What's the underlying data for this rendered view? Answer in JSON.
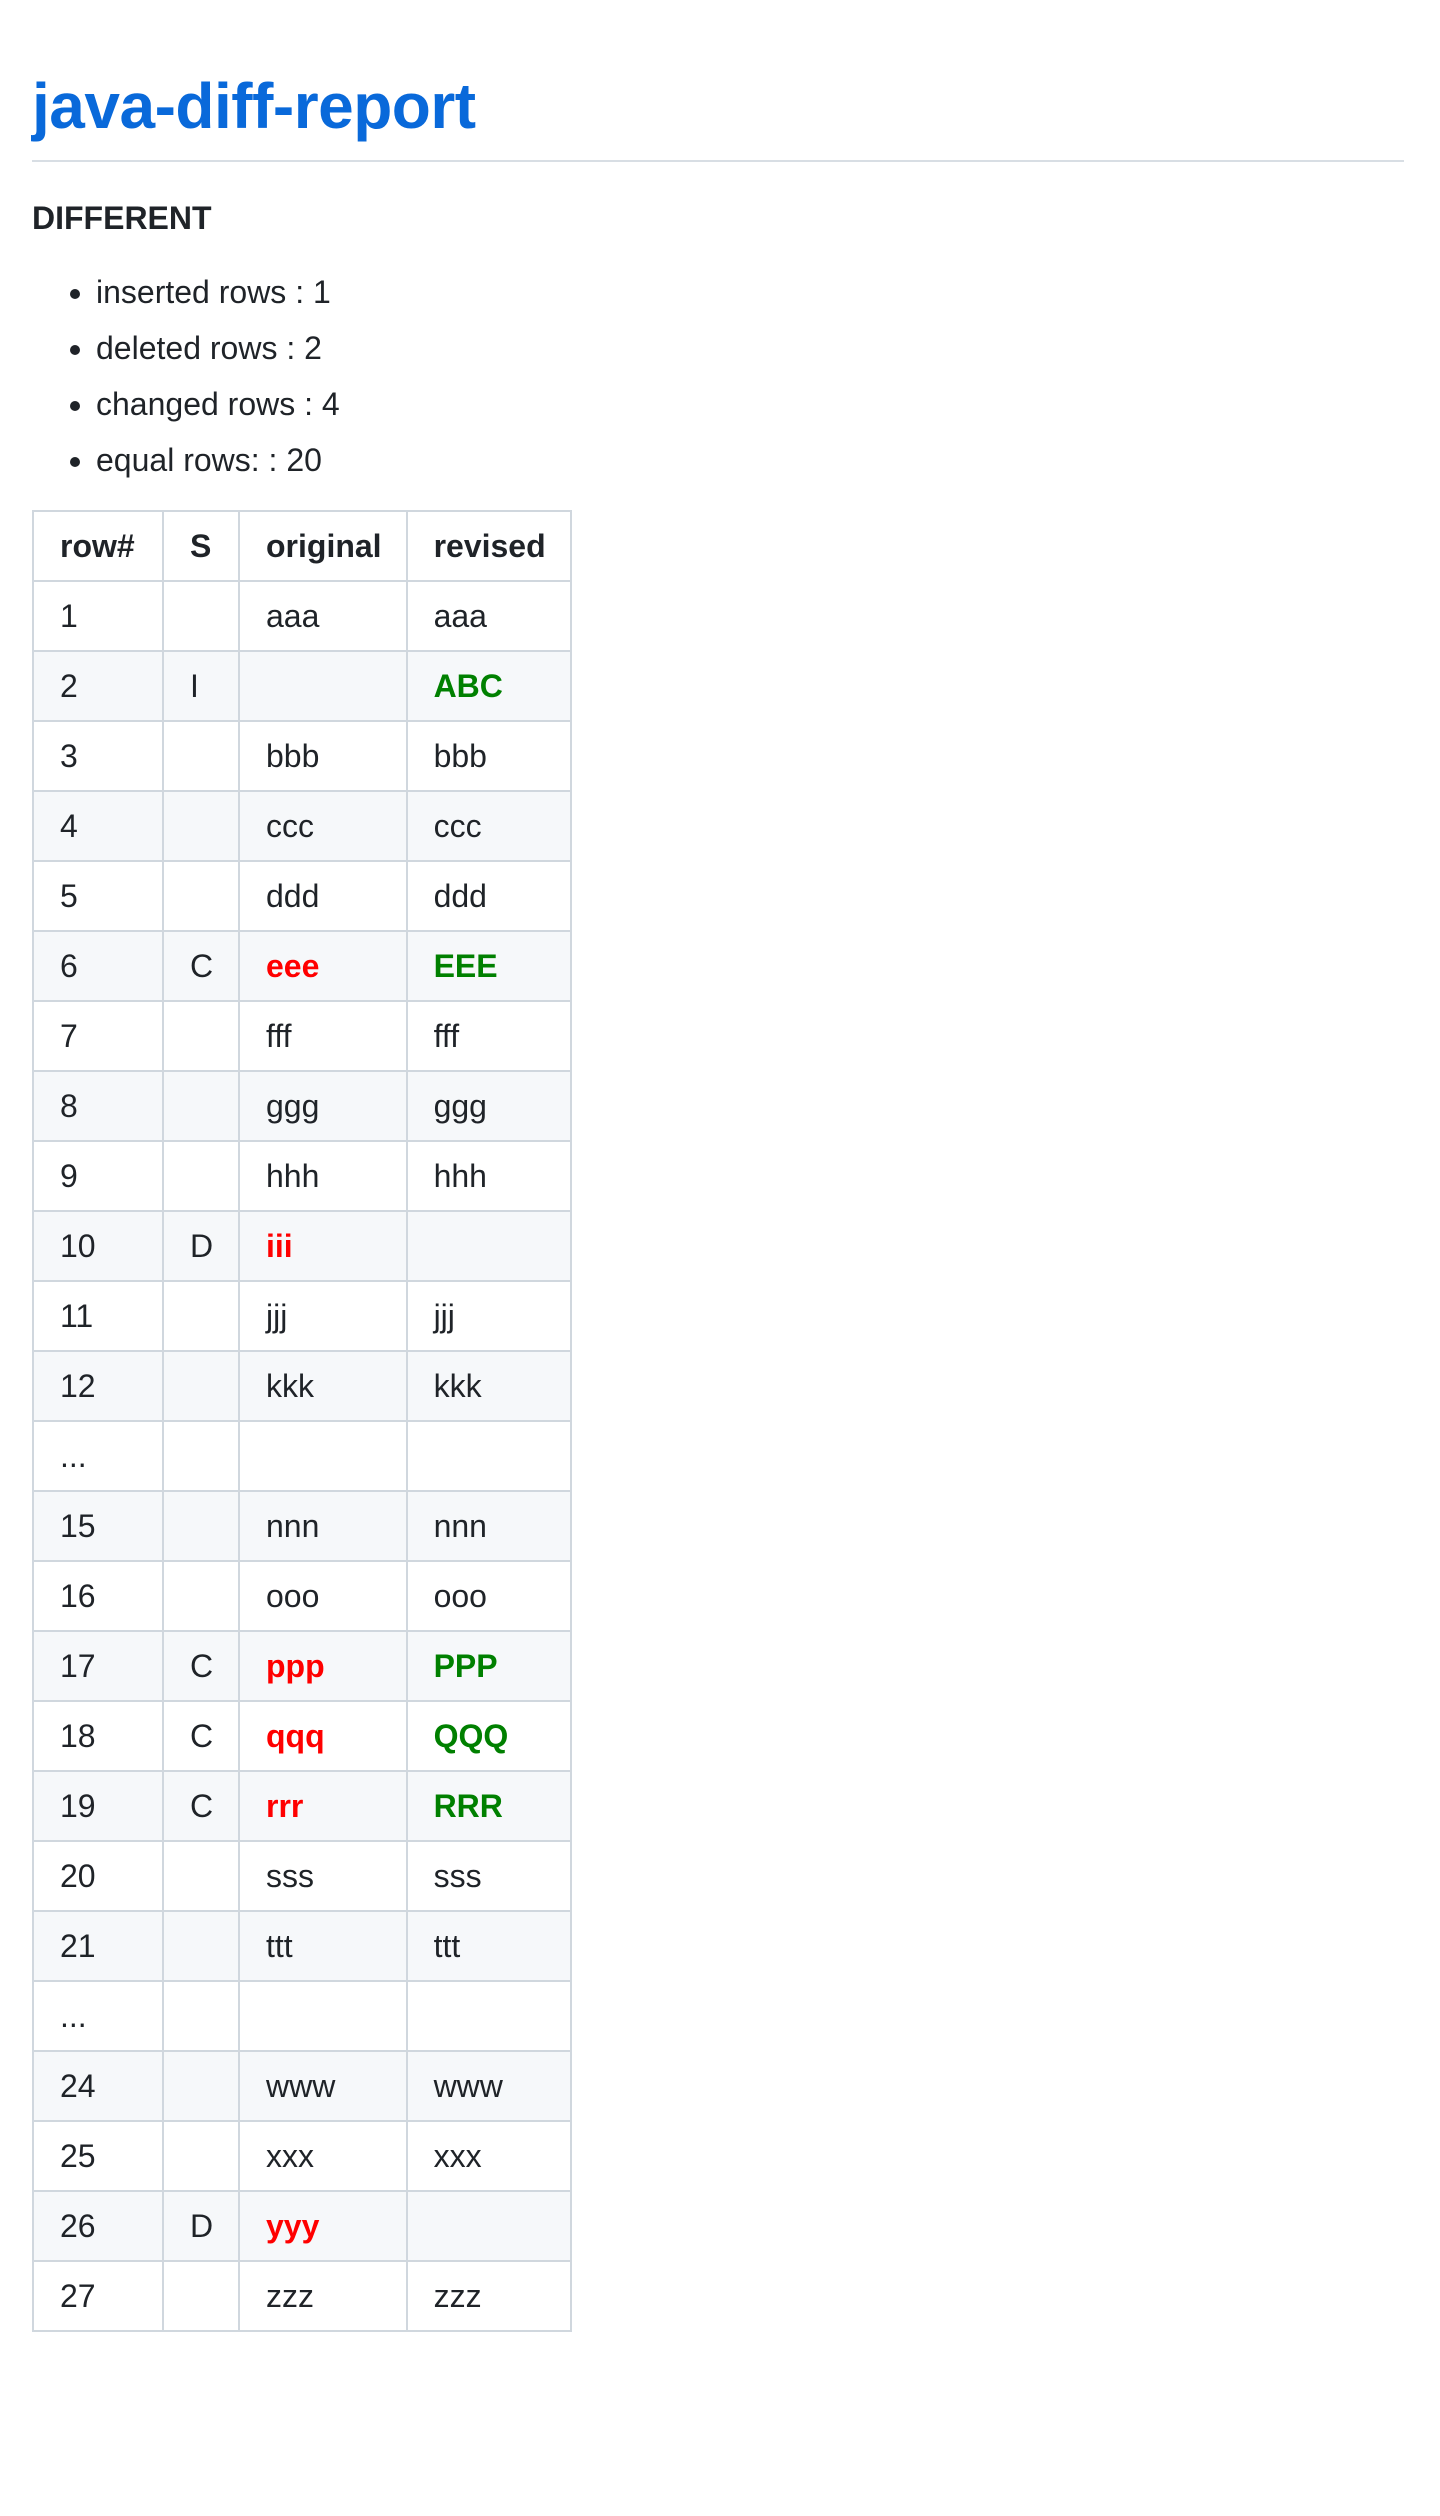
{
  "title": "java-diff-report",
  "status": "DIFFERENT",
  "stats": [
    "inserted rows : 1",
    "deleted rows : 2",
    "changed rows : 4",
    "equal rows: : 20"
  ],
  "colors": {
    "title": "#0969da",
    "removed_text": "#ff0000",
    "added_text": "#008000",
    "zebra_row": "#f6f8fa",
    "border": "#d0d7de"
  },
  "table": {
    "headers": [
      "row#",
      "S",
      "original",
      "revised"
    ],
    "rows": [
      {
        "row": "1",
        "s": "",
        "original": "aaa",
        "revised": "aaa"
      },
      {
        "row": "2",
        "s": "I",
        "original": "",
        "revised": "ABC"
      },
      {
        "row": "3",
        "s": "",
        "original": "bbb",
        "revised": "bbb"
      },
      {
        "row": "4",
        "s": "",
        "original": "ccc",
        "revised": "ccc"
      },
      {
        "row": "5",
        "s": "",
        "original": "ddd",
        "revised": "ddd"
      },
      {
        "row": "6",
        "s": "C",
        "original": "eee",
        "revised": "EEE"
      },
      {
        "row": "7",
        "s": "",
        "original": "fff",
        "revised": "fff"
      },
      {
        "row": "8",
        "s": "",
        "original": "ggg",
        "revised": "ggg"
      },
      {
        "row": "9",
        "s": "",
        "original": "hhh",
        "revised": "hhh"
      },
      {
        "row": "10",
        "s": "D",
        "original": "iii",
        "revised": ""
      },
      {
        "row": "11",
        "s": "",
        "original": "jjj",
        "revised": "jjj"
      },
      {
        "row": "12",
        "s": "",
        "original": "kkk",
        "revised": "kkk"
      },
      {
        "row": "...",
        "s": "",
        "original": "",
        "revised": ""
      },
      {
        "row": "15",
        "s": "",
        "original": "nnn",
        "revised": "nnn"
      },
      {
        "row": "16",
        "s": "",
        "original": "ooo",
        "revised": "ooo"
      },
      {
        "row": "17",
        "s": "C",
        "original": "ppp",
        "revised": "PPP"
      },
      {
        "row": "18",
        "s": "C",
        "original": "qqq",
        "revised": "QQQ"
      },
      {
        "row": "19",
        "s": "C",
        "original": "rrr",
        "revised": "RRR"
      },
      {
        "row": "20",
        "s": "",
        "original": "sss",
        "revised": "sss"
      },
      {
        "row": "21",
        "s": "",
        "original": "ttt",
        "revised": "ttt"
      },
      {
        "row": "...",
        "s": "",
        "original": "",
        "revised": ""
      },
      {
        "row": "24",
        "s": "",
        "original": "www",
        "revised": "www"
      },
      {
        "row": "25",
        "s": "",
        "original": "xxx",
        "revised": "xxx"
      },
      {
        "row": "26",
        "s": "D",
        "original": "yyy",
        "revised": ""
      },
      {
        "row": "27",
        "s": "",
        "original": "zzz",
        "revised": "zzz"
      }
    ]
  }
}
